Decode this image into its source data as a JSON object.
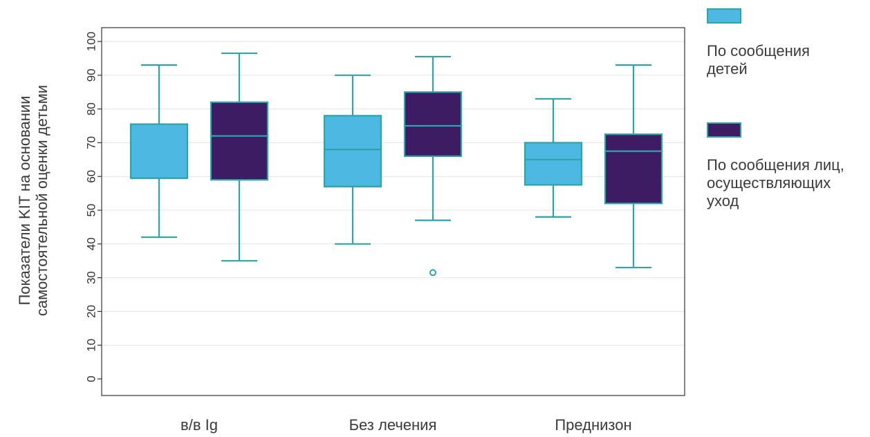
{
  "chart_data": {
    "type": "box",
    "ylabel": "Показатели KIT на основании\nсамостоятельной оценки детьми",
    "ylim": [
      0,
      100
    ],
    "yticks": [
      0,
      10,
      20,
      30,
      40,
      50,
      60,
      70,
      80,
      90,
      100
    ],
    "grid": true,
    "legend_position": "right",
    "categories": [
      "в/в Ig",
      "Без лечения",
      "Преднизон"
    ],
    "series": [
      {
        "name": "По сообщения\n детей",
        "color": "#4db8e2",
        "boxes": [
          {
            "min": 42,
            "q1": 59.5,
            "median": 59.5,
            "q3": 75.5,
            "max": 93
          },
          {
            "min": 40,
            "q1": 57,
            "median": 68,
            "q3": 78,
            "max": 90
          },
          {
            "min": 48,
            "q1": 57.5,
            "median": 65,
            "q3": 70,
            "max": 83
          }
        ],
        "outliers": [
          [],
          [],
          []
        ]
      },
      {
        "name": "По сообщения лиц,\nосуществляющих\nуход",
        "color": "#3d1c63",
        "boxes": [
          {
            "min": 35,
            "q1": 59,
            "median": 72,
            "q3": 82,
            "max": 96.5
          },
          {
            "min": 47,
            "q1": 66,
            "median": 75,
            "q3": 85,
            "max": 95.5
          },
          {
            "min": 33,
            "q1": 52,
            "median": 67.5,
            "q3": 72.5,
            "max": 93
          }
        ],
        "outliers": [
          [],
          [
            31.5
          ],
          []
        ]
      }
    ]
  }
}
